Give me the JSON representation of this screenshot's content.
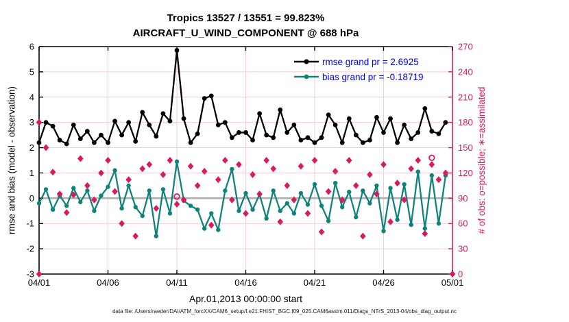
{
  "title": {
    "line1": "Tropics 13527 / 13551 = 99.823%",
    "line2": "AIRCRAFT_U_WIND_COMPONENT @ 688 hPa"
  },
  "legend": {
    "rmse_label": "rmse grand pr = 2.6925",
    "bias_label": "bias grand pr = -0.18719"
  },
  "axes": {
    "left": {
      "label": "rmse and bias (model - observation)"
    },
    "right": {
      "label": "# of obs: o=possible; ∗=assimilated"
    },
    "x": {
      "label": "Apr.01,2013 00:00:00 start"
    }
  },
  "footer": {
    "data_file": "data file: /Users/raeder/DAI/ATM_forcXX/CAM6_setup/f.e21.FHIST_BGC.f09_025.CAM6assim.011/Diags_NTrS_2013-04/obs_diag_output.nc"
  },
  "colors": {
    "rmse": "#000000",
    "bias": "#0f837b",
    "obs": "#d81b5e",
    "legend_text": "#0000ee",
    "grid": "#f2ccd8",
    "zero_line": "#b0b0b0",
    "spine": "#000000"
  },
  "chart_data": {
    "type": "line",
    "title": "Tropics 13527 / 13551 = 99.823%",
    "subtitle": "AIRCRAFT_U_WIND_COMPONENT @ 688 hPa",
    "xlabel": "Apr.01,2013 00:00:00 start",
    "x_unit": "days since 2013-04-01 00:00:00",
    "x_range": [
      0,
      30
    ],
    "x_tick_days": [
      0,
      5,
      10,
      15,
      20,
      25,
      30
    ],
    "x_tick_labels": [
      "04/01",
      "04/06",
      "04/11",
      "04/16",
      "04/21",
      "04/26",
      "05/01"
    ],
    "y_left": {
      "label": "rmse and bias (model - observation)",
      "range": [
        -3,
        6
      ],
      "ticks": [
        -3,
        -2,
        -1,
        0,
        1,
        2,
        3,
        4,
        5,
        6
      ]
    },
    "y_right": {
      "label": "# of obs: o=possible; ∗=assimilated",
      "range": [
        0,
        270
      ],
      "ticks": [
        0,
        30,
        60,
        90,
        120,
        150,
        180,
        210,
        240,
        270
      ]
    },
    "grid": true,
    "zero_reference_line": 0,
    "legend_position": "top-right-inside",
    "time_days": [
      0,
      0.5,
      1,
      1.5,
      2,
      2.5,
      3,
      3.5,
      4,
      4.5,
      5,
      5.5,
      6,
      6.5,
      7,
      7.5,
      8,
      8.5,
      9,
      9.5,
      10,
      10.5,
      11,
      11.5,
      12,
      12.5,
      13,
      13.5,
      14,
      14.5,
      15,
      15.5,
      16,
      16.5,
      17,
      17.5,
      18,
      18.5,
      19,
      19.5,
      20,
      20.5,
      21,
      21.5,
      22,
      22.5,
      23,
      23.5,
      24,
      24.5,
      25,
      25.5,
      26,
      26.5,
      27,
      27.5,
      28,
      28.5,
      29,
      29.5
    ],
    "series": [
      {
        "name": "rmse",
        "grand_value": 2.6925,
        "color": "#000000",
        "values": [
          2.2,
          3.0,
          2.85,
          2.3,
          2.15,
          2.9,
          2.35,
          2.65,
          2.2,
          2.5,
          2.2,
          3.05,
          2.5,
          3.0,
          2.25,
          3.4,
          2.9,
          2.45,
          3.35,
          3.05,
          5.85,
          3.15,
          2.2,
          2.55,
          3.95,
          4.05,
          2.9,
          3.0,
          2.4,
          2.6,
          2.6,
          2.3,
          3.35,
          2.5,
          2.4,
          3.5,
          2.6,
          2.9,
          2.3,
          2.4,
          2.2,
          2.4,
          3.3,
          2.9,
          2.2,
          3.15,
          2.5,
          2.2,
          2.3,
          3.2,
          2.6,
          3.15,
          2.2,
          2.9,
          2.35,
          2.6,
          3.55,
          2.65,
          2.55,
          3.0
        ]
      },
      {
        "name": "bias",
        "grand_value": -0.18719,
        "color": "#0f837b",
        "values": [
          -0.2,
          0.35,
          -0.45,
          0.1,
          -0.3,
          0.4,
          -0.15,
          0.3,
          -0.5,
          0.1,
          0.45,
          1.1,
          -0.4,
          0.5,
          -0.35,
          -0.7,
          0.3,
          -1.5,
          0.35,
          -0.6,
          1.45,
          -0.1,
          -0.3,
          -0.45,
          -1.2,
          -0.6,
          -1.25,
          0.3,
          1.15,
          -0.5,
          0.2,
          -0.45,
          0.15,
          -0.8,
          0.3,
          -0.5,
          -0.2,
          -0.6,
          0.2,
          -0.25,
          0.55,
          -0.3,
          -0.9,
          0.6,
          -0.35,
          0.25,
          -0.75,
          0.3,
          -0.2,
          0.5,
          -1.3,
          0.4,
          -0.85,
          0.55,
          -1.05,
          1.05,
          -1.2,
          0.9,
          -1.0,
          0.9
        ]
      }
    ],
    "obs_counts": {
      "color": "#d81b5e",
      "marker_possible": "o",
      "marker_assimilated": "∗",
      "points": [
        {
          "t": 0,
          "possible": 0,
          "assimilated": 0
        },
        {
          "t": 0,
          "possible": 180,
          "assimilated": 180
        },
        {
          "t": 0.5,
          "possible": 150,
          "assimilated": 150
        },
        {
          "t": 1,
          "possible": 121,
          "assimilated": 121
        },
        {
          "t": 1.5,
          "possible": 95,
          "assimilated": 95
        },
        {
          "t": 2,
          "possible": 73,
          "assimilated": 73
        },
        {
          "t": 2.5,
          "possible": 94,
          "assimilated": 94
        },
        {
          "t": 3,
          "possible": 137,
          "assimilated": 137
        },
        {
          "t": 3.5,
          "possible": 105,
          "assimilated": 105
        },
        {
          "t": 4,
          "possible": 88,
          "assimilated": 88
        },
        {
          "t": 4.5,
          "possible": 120,
          "assimilated": 120
        },
        {
          "t": 5,
          "possible": 135,
          "assimilated": 135
        },
        {
          "t": 5.5,
          "possible": 98,
          "assimilated": 98
        },
        {
          "t": 6,
          "possible": 60,
          "assimilated": 60
        },
        {
          "t": 6.5,
          "possible": 112,
          "assimilated": 112
        },
        {
          "t": 7,
          "possible": 45,
          "assimilated": 45
        },
        {
          "t": 7.5,
          "possible": 125,
          "assimilated": 125
        },
        {
          "t": 8,
          "possible": 130,
          "assimilated": 130
        },
        {
          "t": 8.5,
          "possible": 78,
          "assimilated": 78
        },
        {
          "t": 9,
          "possible": 118,
          "assimilated": 118
        },
        {
          "t": 9.5,
          "possible": 135,
          "assimilated": 135
        },
        {
          "t": 10,
          "possible": 92,
          "assimilated": 83
        },
        {
          "t": 10.5,
          "possible": 88,
          "assimilated": 88
        },
        {
          "t": 11,
          "possible": 128,
          "assimilated": 128
        },
        {
          "t": 11.5,
          "possible": 105,
          "assimilated": 105
        },
        {
          "t": 12,
          "possible": 122,
          "assimilated": 122
        },
        {
          "t": 12.5,
          "possible": 58,
          "assimilated": 58
        },
        {
          "t": 13,
          "possible": 112,
          "assimilated": 112
        },
        {
          "t": 13.5,
          "possible": 135,
          "assimilated": 135
        },
        {
          "t": 14,
          "possible": 88,
          "assimilated": 88
        },
        {
          "t": 14.5,
          "possible": 130,
          "assimilated": 130
        },
        {
          "t": 15,
          "possible": 72,
          "assimilated": 72
        },
        {
          "t": 15.5,
          "possible": 118,
          "assimilated": 118
        },
        {
          "t": 16,
          "possible": 95,
          "assimilated": 95
        },
        {
          "t": 16.5,
          "possible": 135,
          "assimilated": 135
        },
        {
          "t": 17,
          "possible": 125,
          "assimilated": 125
        },
        {
          "t": 17.5,
          "possible": 62,
          "assimilated": 62
        },
        {
          "t": 18,
          "possible": 105,
          "assimilated": 105
        },
        {
          "t": 18.5,
          "possible": 88,
          "assimilated": 88
        },
        {
          "t": 19,
          "possible": 128,
          "assimilated": 128
        },
        {
          "t": 19.5,
          "possible": 72,
          "assimilated": 72
        },
        {
          "t": 20,
          "possible": 135,
          "assimilated": 135
        },
        {
          "t": 20.5,
          "possible": 50,
          "assimilated": 50
        },
        {
          "t": 21,
          "possible": 98,
          "assimilated": 98
        },
        {
          "t": 21.5,
          "possible": 122,
          "assimilated": 122
        },
        {
          "t": 22,
          "possible": 88,
          "assimilated": 88
        },
        {
          "t": 22.5,
          "possible": 135,
          "assimilated": 135
        },
        {
          "t": 23,
          "possible": 105,
          "assimilated": 105
        },
        {
          "t": 23.5,
          "possible": 45,
          "assimilated": 45
        },
        {
          "t": 24,
          "possible": 118,
          "assimilated": 118
        },
        {
          "t": 24.5,
          "possible": 95,
          "assimilated": 95
        },
        {
          "t": 25,
          "possible": 130,
          "assimilated": 130
        },
        {
          "t": 25.5,
          "possible": 62,
          "assimilated": 62
        },
        {
          "t": 26,
          "possible": 108,
          "assimilated": 108
        },
        {
          "t": 26.5,
          "possible": 88,
          "assimilated": 88
        },
        {
          "t": 27,
          "possible": 125,
          "assimilated": 125
        },
        {
          "t": 27.5,
          "possible": 135,
          "assimilated": 135
        },
        {
          "t": 28,
          "possible": 48,
          "assimilated": 48
        },
        {
          "t": 28.5,
          "possible": 138,
          "assimilated": 130
        },
        {
          "t": 29,
          "possible": 112,
          "assimilated": 112
        },
        {
          "t": 29.5,
          "possible": 120,
          "assimilated": 120
        },
        {
          "t": 30,
          "possible": 0,
          "assimilated": 0
        }
      ]
    }
  }
}
